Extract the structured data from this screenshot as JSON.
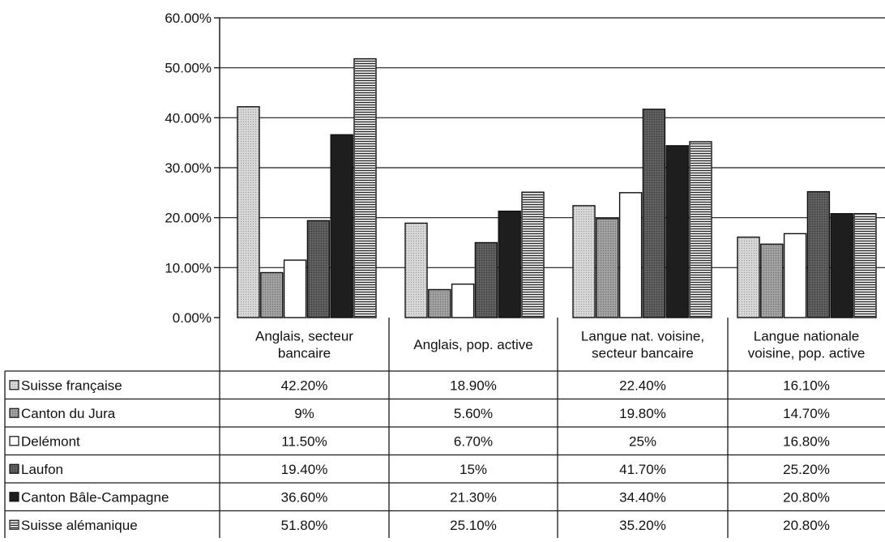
{
  "chart_data": {
    "type": "bar",
    "ylim": [
      0,
      60
    ],
    "y_ticks": [
      "0.00%",
      "10.00%",
      "20.00%",
      "30.00%",
      "40.00%",
      "50.00%",
      "60.00%"
    ],
    "grid": true,
    "legend_placement": "left of data table",
    "categories": [
      "Anglais, secteur bancaire",
      "Anglais, pop. active",
      "Langue nat. voisine, secteur bancaire",
      "Langue nationale voisine, pop. active"
    ],
    "category_label_lines": [
      [
        "Anglais, secteur",
        "bancaire"
      ],
      [
        "Anglais, pop. active"
      ],
      [
        "Langue nat. voisine,",
        "secteur bancaire"
      ],
      [
        "Langue nationale",
        "voisine, pop. active"
      ]
    ],
    "series": [
      {
        "name": "Suisse française",
        "values": [
          42.2,
          18.9,
          22.4,
          16.1
        ],
        "labels": [
          "42.20%",
          "18.90%",
          "22.40%",
          "16.10%"
        ],
        "fill": "#d4d4d4",
        "pattern": "dots"
      },
      {
        "name": "Canton du Jura",
        "values": [
          9,
          5.6,
          19.8,
          14.7
        ],
        "labels": [
          "9%",
          "5.60%",
          "19.80%",
          "14.70%"
        ],
        "fill": "#9a9a9a",
        "pattern": "dots"
      },
      {
        "name": "Delémont",
        "values": [
          11.5,
          6.7,
          25,
          16.8
        ],
        "labels": [
          "11.50%",
          "6.70%",
          "25%",
          "16.80%"
        ],
        "fill": "#ffffff",
        "pattern": "none"
      },
      {
        "name": "Laufon",
        "values": [
          19.4,
          15,
          41.7,
          25.2
        ],
        "labels": [
          "19.40%",
          "15%",
          "41.70%",
          "25.20%"
        ],
        "fill": "#555555",
        "pattern": "dots"
      },
      {
        "name": "Canton Bâle-Campagne",
        "values": [
          36.6,
          21.3,
          34.4,
          20.8
        ],
        "labels": [
          "36.60%",
          "21.30%",
          "34.40%",
          "20.80%"
        ],
        "fill": "#1e1e1e",
        "pattern": "none"
      },
      {
        "name": "Suisse alémanique",
        "values": [
          51.8,
          25.1,
          35.2,
          20.8
        ],
        "labels": [
          "51.80%",
          "25.10%",
          "35.20%",
          "20.80%"
        ],
        "fill": "#d8d8d8",
        "pattern": "hlines"
      }
    ]
  }
}
